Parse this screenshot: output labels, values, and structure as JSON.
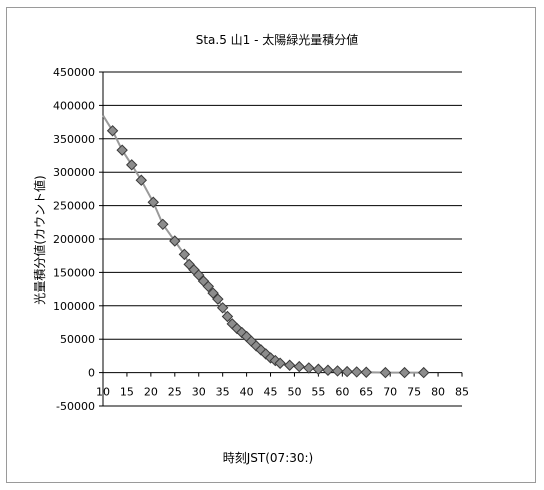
{
  "chart_data": {
    "type": "scatter",
    "title": "Sta.5 山1 - 太陽緑光量積分値",
    "xlabel": "時刻JST(07:30:)",
    "ylabel": "光量積分値(カウント値)",
    "xlim": [
      10,
      85
    ],
    "ylim": [
      -50000,
      450000
    ],
    "xticks": [
      10,
      15,
      20,
      25,
      30,
      35,
      40,
      45,
      50,
      55,
      60,
      65,
      70,
      75,
      80,
      85
    ],
    "yticks": [
      -50000,
      0,
      50000,
      100000,
      150000,
      200000,
      250000,
      300000,
      350000,
      400000,
      450000
    ],
    "grid": "horizontal",
    "legend": "none",
    "colors": {
      "marker": "#8c8c8c",
      "marker_edge": "#3a3a3a",
      "line": "#9a9a9a",
      "grid": "#000000"
    },
    "line_start": [
      10,
      385000
    ],
    "series": [
      {
        "x": [
          12,
          14,
          16,
          18,
          20.5,
          22.5,
          25,
          27,
          28,
          29,
          30,
          31,
          32,
          33,
          34,
          35,
          36,
          37,
          38,
          39,
          40,
          41,
          42,
          43,
          44,
          45,
          46,
          47,
          49,
          51,
          53,
          55,
          57,
          59,
          61,
          63,
          65,
          69,
          73,
          77
        ],
        "y": [
          362000,
          333000,
          311000,
          288000,
          255000,
          222000,
          197000,
          177000,
          162000,
          154000,
          146000,
          137000,
          129000,
          119000,
          110000,
          97000,
          84000,
          73000,
          66000,
          60000,
          54000,
          47000,
          40000,
          34000,
          28000,
          22000,
          18000,
          14000,
          11000,
          9000,
          7000,
          5000,
          3500,
          2500,
          1500,
          1000,
          500,
          0,
          0,
          0
        ]
      }
    ]
  }
}
